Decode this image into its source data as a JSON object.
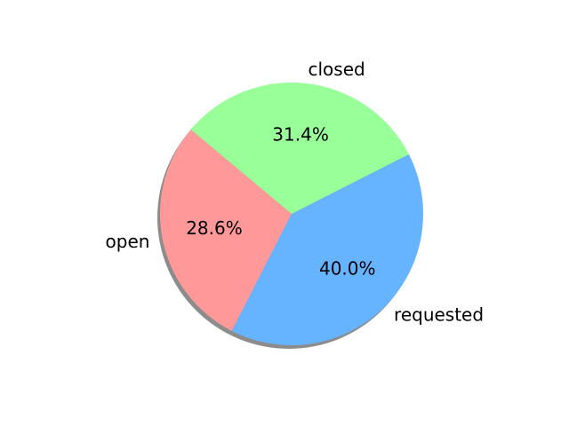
{
  "chart_data": {
    "type": "pie",
    "title": "",
    "start_angle_deg": 140,
    "direction": "counterclockwise",
    "shadow": true,
    "slices": [
      {
        "label": "open",
        "value": 28.6,
        "pct_text": "28.6%",
        "color": "#ff9999"
      },
      {
        "label": "requested",
        "value": 40.0,
        "pct_text": "40.0%",
        "color": "#66b3ff"
      },
      {
        "label": "closed",
        "value": 31.4,
        "pct_text": "31.4%",
        "color": "#99ff99"
      }
    ]
  }
}
